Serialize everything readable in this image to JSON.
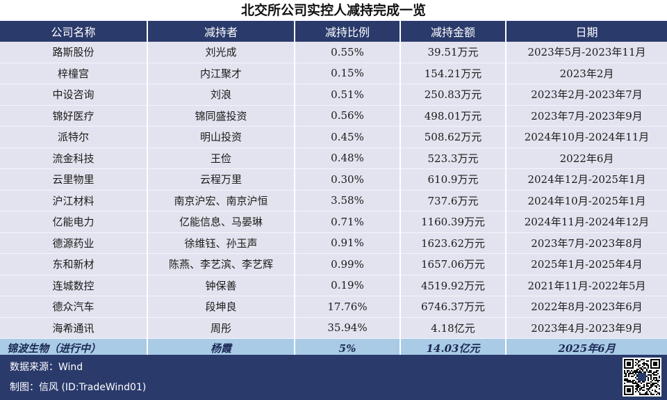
{
  "title": "北交所公司实控人减持完成一览",
  "columns": [
    "公司名称",
    "减持者",
    "减持比例",
    "减持金额",
    "日期"
  ],
  "rows": [
    [
      "路斯股份",
      "刘光成",
      "0.55%",
      "39.51万元",
      "2023年5月-2023年11月"
    ],
    [
      "梓橦宫",
      "内江聚才",
      "0.15%",
      "154.21万元",
      "2023年2月"
    ],
    [
      "中设咨询",
      "刘浪",
      "0.51%",
      "250.83万元",
      "2023年2月-2023年7月"
    ],
    [
      "锦好医疗",
      "锦同盛投资",
      "0.56%",
      "498.01万元",
      "2023年7月-2023年9月"
    ],
    [
      "派特尔",
      "明山投资",
      "0.45%",
      "508.62万元",
      "2024年10月-2024年11月"
    ],
    [
      "流金科技",
      "王俭",
      "0.48%",
      "523.3万元",
      "2022年6月"
    ],
    [
      "云里物里",
      "云程万里",
      "0.30%",
      "610.9万元",
      "2024年12月-2025年1月"
    ],
    [
      "沪江材料",
      "南京沪宏、南京沪恒",
      "3.58%",
      "737.6万元",
      "2024年10月-2025年1月"
    ],
    [
      "亿能电力",
      "亿能信息、马晏琳",
      "0.71%",
      "1160.39万元",
      "2024年11月-2024年12月"
    ],
    [
      "德源药业",
      "徐维钰、孙玉声",
      "0.91%",
      "1623.62万元",
      "2023年7月-2023年8月"
    ],
    [
      "东和新材",
      "陈燕、李艺滨、李艺辉",
      "0.99%",
      "1657.06万元",
      "2025年1月-2025年4月"
    ],
    [
      "连城数控",
      "钟保善",
      "0.19%",
      "4519.92万元",
      "2021年11月-2022年5月"
    ],
    [
      "德众汽车",
      "段坤良",
      "17.76%",
      "6746.37万元",
      "2022年8月-2023年6月"
    ],
    [
      "海希通讯",
      "周彤",
      "35.94%",
      "4.18亿元",
      "2023年4月-2023年9月"
    ]
  ],
  "highlight_row": [
    "锦波生物（进行中）",
    "杨霞",
    "5%",
    "14.03亿元",
    "2025年6月"
  ],
  "footer": {
    "source": "数据来源：Wind",
    "credit": "制图：信风 (ID:TradeWind01)"
  },
  "colors": {
    "header_bg": "#2a3a6b",
    "row_bg": "#e3e3ef",
    "highlight_bg": "#a9cbe6"
  }
}
